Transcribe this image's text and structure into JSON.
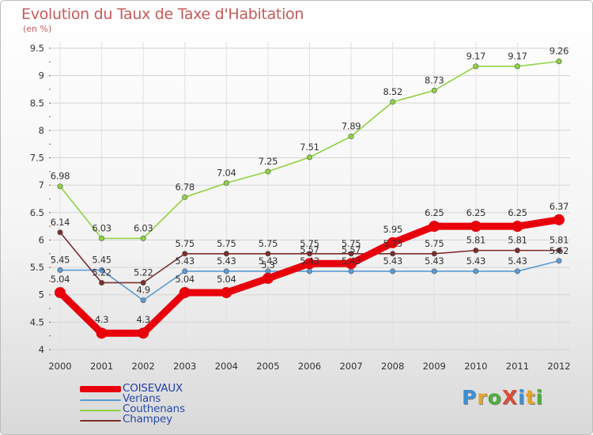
{
  "title": "Evolution du Taux de Taxe d'Habitation",
  "unit_label": "(en %)",
  "brand": {
    "text": "ProXiti",
    "letter_colors": [
      "#3d8fd1",
      "#e0a42a",
      "#4cae3a",
      "#d94b3a",
      "#3d8fd1",
      "#e0a42a",
      "#4cae3a"
    ]
  },
  "chart_data": {
    "type": "line",
    "title": "Evolution du Taux de Taxe d'Habitation",
    "ylabel": "(en %)",
    "xlabel": "",
    "categories": [
      "2000",
      "2001",
      "2002",
      "2003",
      "2004",
      "2005",
      "2006",
      "2007",
      "2008",
      "2009",
      "2010",
      "2011",
      "2012"
    ],
    "ylim": [
      4,
      9.5
    ],
    "yticks": [
      "4",
      "4.5",
      "5",
      "5.5",
      "6",
      "6.5",
      "7",
      "7.5",
      "8",
      "8.5",
      "9",
      "9.5"
    ],
    "grid": true,
    "legend_position": "bottom-left",
    "series": [
      {
        "name": "COISEVAUX",
        "color": "#e8000b",
        "emphasis": true,
        "values": [
          5.04,
          4.3,
          4.3,
          5.04,
          5.04,
          5.3,
          5.57,
          5.57,
          5.95,
          6.25,
          6.25,
          6.25,
          6.37
        ],
        "labels": [
          "5.04",
          "4.3",
          "4.3",
          "5.04",
          "5.04",
          "5.3",
          "5.57",
          "5.57",
          "5.95",
          "6.25",
          "6.25",
          "6.25",
          "6.37"
        ]
      },
      {
        "name": "Verlans",
        "color": "#5b9bd5",
        "emphasis": false,
        "values": [
          5.45,
          5.45,
          4.9,
          5.43,
          5.43,
          5.43,
          5.43,
          5.43,
          5.43,
          5.43,
          5.43,
          5.43,
          5.62
        ],
        "labels": [
          "5.45",
          "5.45",
          "4.9",
          "5.43",
          "5.43",
          "5.43",
          "5.43",
          "5.43",
          "5.43",
          "5.43",
          "5.43",
          "5.43",
          "5.62"
        ]
      },
      {
        "name": "Couthenans",
        "color": "#8ed33f",
        "emphasis": false,
        "values": [
          6.98,
          6.03,
          6.03,
          6.78,
          7.04,
          7.25,
          7.51,
          7.89,
          8.52,
          8.73,
          9.17,
          9.17,
          9.26
        ],
        "labels": [
          "6.98",
          "6.03",
          "6.03",
          "6.78",
          "7.04",
          "7.25",
          "7.51",
          "7.89",
          "8.52",
          "8.73",
          "9.17",
          "9.17",
          "9.26"
        ]
      },
      {
        "name": "Champey",
        "color": "#7b2c2c",
        "emphasis": false,
        "values": [
          6.14,
          5.22,
          5.22,
          5.75,
          5.75,
          5.75,
          5.75,
          5.75,
          5.75,
          5.75,
          5.81,
          5.81,
          5.81
        ],
        "labels": [
          "6.14",
          "5.22",
          "5.22",
          "5.75",
          "5.75",
          "5.75",
          "5.75",
          "5.75",
          "5.75",
          "5.75",
          "5.81",
          "5.81",
          "5.81"
        ]
      }
    ]
  }
}
